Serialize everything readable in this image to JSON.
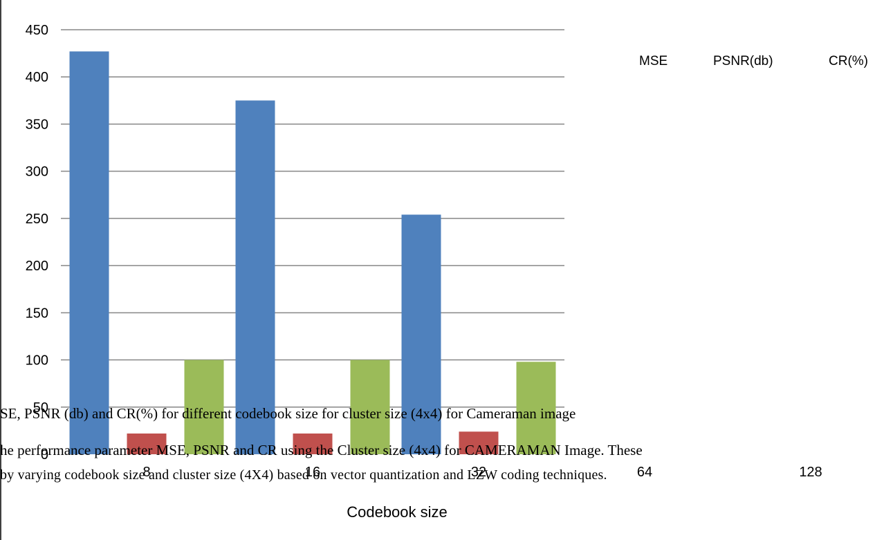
{
  "chart_data": {
    "type": "bar",
    "title": "",
    "xlabel": "Codebook size",
    "ylabel": "",
    "ylim": [
      0,
      450
    ],
    "y_ticks": [
      0,
      50,
      100,
      150,
      200,
      250,
      300,
      350,
      400,
      450
    ],
    "grid": true,
    "legend_position": "top-right",
    "categories": [
      "8",
      "16",
      "32",
      "64",
      "128"
    ],
    "series": [
      {
        "name": "MSE",
        "color": "#4F81BD",
        "values": [
          427,
          375,
          254,
          null,
          null
        ]
      },
      {
        "name": "PSNR(db)",
        "color": "#C0504D",
        "values": [
          22,
          22,
          24,
          null,
          null
        ]
      },
      {
        "name": "CR(%)",
        "color": "#9BBB59",
        "values": [
          100,
          100,
          98,
          null,
          null
        ]
      }
    ]
  },
  "document": {
    "caption": "SE, PSNR (db) and CR(%) for different codebook size for cluster size (4x4) for Cameraman image",
    "paragraph_line1": "he performance parameter MSE, PSNR and CR using the Cluster size (4x4) for CAMERAMAN Image. These",
    "paragraph_line2": "by varying codebook size and cluster size (4X4) based on vector quantization and LZW coding techniques."
  }
}
